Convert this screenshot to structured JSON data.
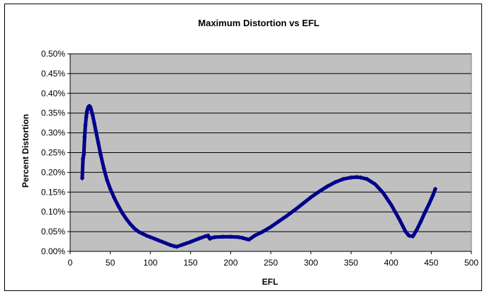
{
  "chart_data": {
    "type": "scatter",
    "title": "Maximum Distortion vs EFL",
    "xlabel": "EFL",
    "ylabel": "Percent Distortion",
    "xlim": [
      0,
      500
    ],
    "ylim": [
      0,
      0.5
    ],
    "x_ticks": [
      "0",
      "50",
      "100",
      "150",
      "200",
      "250",
      "300",
      "350",
      "400",
      "450",
      "500"
    ],
    "y_ticks": [
      "0.00%",
      "0.05%",
      "0.10%",
      "0.15%",
      "0.20%",
      "0.25%",
      "0.30%",
      "0.35%",
      "0.40%",
      "0.45%",
      "0.50%"
    ],
    "grid": "horizontal",
    "legend": "none",
    "series": [
      {
        "color": "#00008B",
        "marker": "diamond",
        "x": [
          15,
          16,
          17,
          18,
          19,
          20,
          21,
          22,
          23,
          24,
          25,
          26,
          28,
          30,
          32,
          35,
          38,
          42,
          46,
          50,
          55,
          60,
          65,
          70,
          75,
          80,
          85,
          90,
          95,
          100,
          105,
          110,
          115,
          120,
          125,
          130,
          133,
          140,
          150,
          160,
          168,
          172,
          173,
          174,
          176,
          180,
          190,
          200,
          210,
          215,
          220,
          223,
          230,
          240,
          250,
          260,
          270,
          280,
          290,
          300,
          310,
          320,
          330,
          340,
          350,
          357,
          362,
          370,
          380,
          390,
          400,
          410,
          418,
          422,
          427,
          432,
          437,
          442,
          447,
          452,
          455
        ],
        "y": [
          0.185,
          0.235,
          0.245,
          0.29,
          0.32,
          0.34,
          0.355,
          0.362,
          0.367,
          0.368,
          0.366,
          0.36,
          0.345,
          0.325,
          0.305,
          0.275,
          0.245,
          0.21,
          0.18,
          0.158,
          0.135,
          0.115,
          0.097,
          0.082,
          0.069,
          0.058,
          0.05,
          0.045,
          0.04,
          0.036,
          0.032,
          0.028,
          0.024,
          0.02,
          0.016,
          0.013,
          0.012,
          0.017,
          0.024,
          0.032,
          0.038,
          0.04,
          0.035,
          0.032,
          0.034,
          0.036,
          0.037,
          0.037,
          0.036,
          0.034,
          0.031,
          0.03,
          0.04,
          0.05,
          0.062,
          0.076,
          0.09,
          0.105,
          0.121,
          0.137,
          0.151,
          0.164,
          0.175,
          0.183,
          0.187,
          0.188,
          0.187,
          0.183,
          0.17,
          0.148,
          0.118,
          0.082,
          0.05,
          0.04,
          0.038,
          0.055,
          0.076,
          0.098,
          0.119,
          0.142,
          0.158
        ]
      }
    ]
  }
}
